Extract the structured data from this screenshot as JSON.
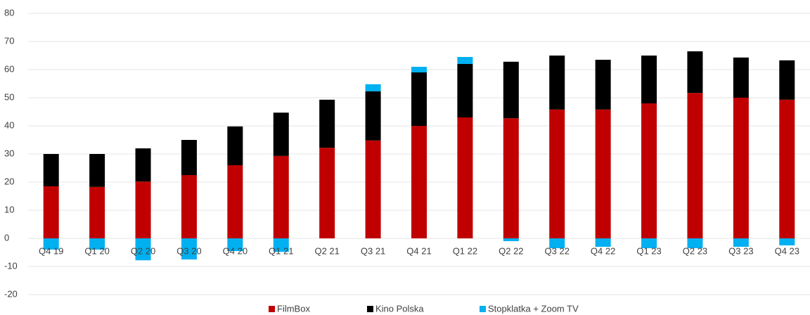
{
  "chart_data": {
    "type": "bar",
    "stacked": true,
    "categories": [
      "Q4 19",
      "Q1 20",
      "Q2 20",
      "Q3 20",
      "Q4 20",
      "Q1 21",
      "Q2 21",
      "Q3 21",
      "Q4 21",
      "Q1 22",
      "Q2 22",
      "Q3 22",
      "Q4 22",
      "Q1 23",
      "Q2 23",
      "Q3 23",
      "Q4 23"
    ],
    "series": [
      {
        "name": "FilmBox",
        "color": "#c00000",
        "values": [
          18.5,
          18.3,
          20.2,
          22.5,
          26,
          29.3,
          32.2,
          34.8,
          40,
          43,
          42.7,
          45.8,
          45.8,
          48,
          51.7,
          50,
          49.3
        ]
      },
      {
        "name": "Kino Polska",
        "color": "#000000",
        "values": [
          11.5,
          11.7,
          11.8,
          12.5,
          13.8,
          15.4,
          17.1,
          17.5,
          19,
          19,
          20.1,
          19.2,
          17.7,
          17,
          14.8,
          14.3,
          14
        ]
      },
      {
        "name": "Stopklatka + Zoom TV",
        "color": "#00b0f0",
        "values": [
          -4,
          -4,
          -7.8,
          -7.5,
          -4.5,
          -4.8,
          0,
          2.5,
          2,
          2.5,
          -1,
          -3.5,
          -3,
          -3.5,
          -3.5,
          -3,
          -2.5
        ]
      }
    ],
    "ylim": [
      -20,
      80
    ],
    "yticks": [
      -20,
      -10,
      0,
      10,
      20,
      30,
      40,
      50,
      60,
      70,
      80
    ],
    "grid": true,
    "legend": "bottom"
  }
}
